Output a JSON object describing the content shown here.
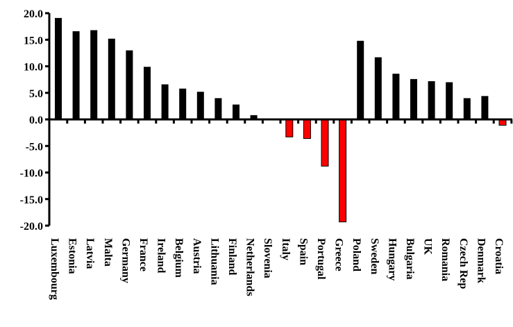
{
  "chart_data": {
    "type": "bar",
    "categories": [
      "Luxembourg",
      "Estonia",
      "Latvia",
      "Malta",
      "Germany",
      "France",
      "Ireland",
      "Belgium",
      "Austria",
      "Lithuania",
      "Finland",
      "Netherlands",
      "Slovenia",
      "Italy",
      "Spain",
      "Portugal",
      "Greece",
      "Poland",
      "Sweden",
      "Hungary",
      "Bulgaria",
      "UK",
      "Romania",
      "Czech Rep",
      "Denmark",
      "Croatia"
    ],
    "values": [
      19.1,
      16.6,
      16.8,
      15.2,
      13.0,
      9.9,
      6.6,
      5.8,
      5.2,
      4.0,
      2.8,
      0.8,
      0.0,
      -3.3,
      -3.6,
      -8.8,
      -19.3,
      14.8,
      11.7,
      8.6,
      7.6,
      7.2,
      7.0,
      4.0,
      4.4,
      -1.1
    ],
    "ylim": [
      -20,
      20
    ],
    "yticks": [
      "20.0",
      "15.0",
      "10.0",
      "5.0",
      "0.0",
      "-5.0",
      "-10.0",
      "-15.0",
      "-20.0"
    ],
    "title": "",
    "xlabel": "",
    "ylabel": "",
    "grid": false,
    "colors": {
      "positive": "#000000",
      "negative": "#ff0000",
      "axis": "#000000"
    }
  }
}
